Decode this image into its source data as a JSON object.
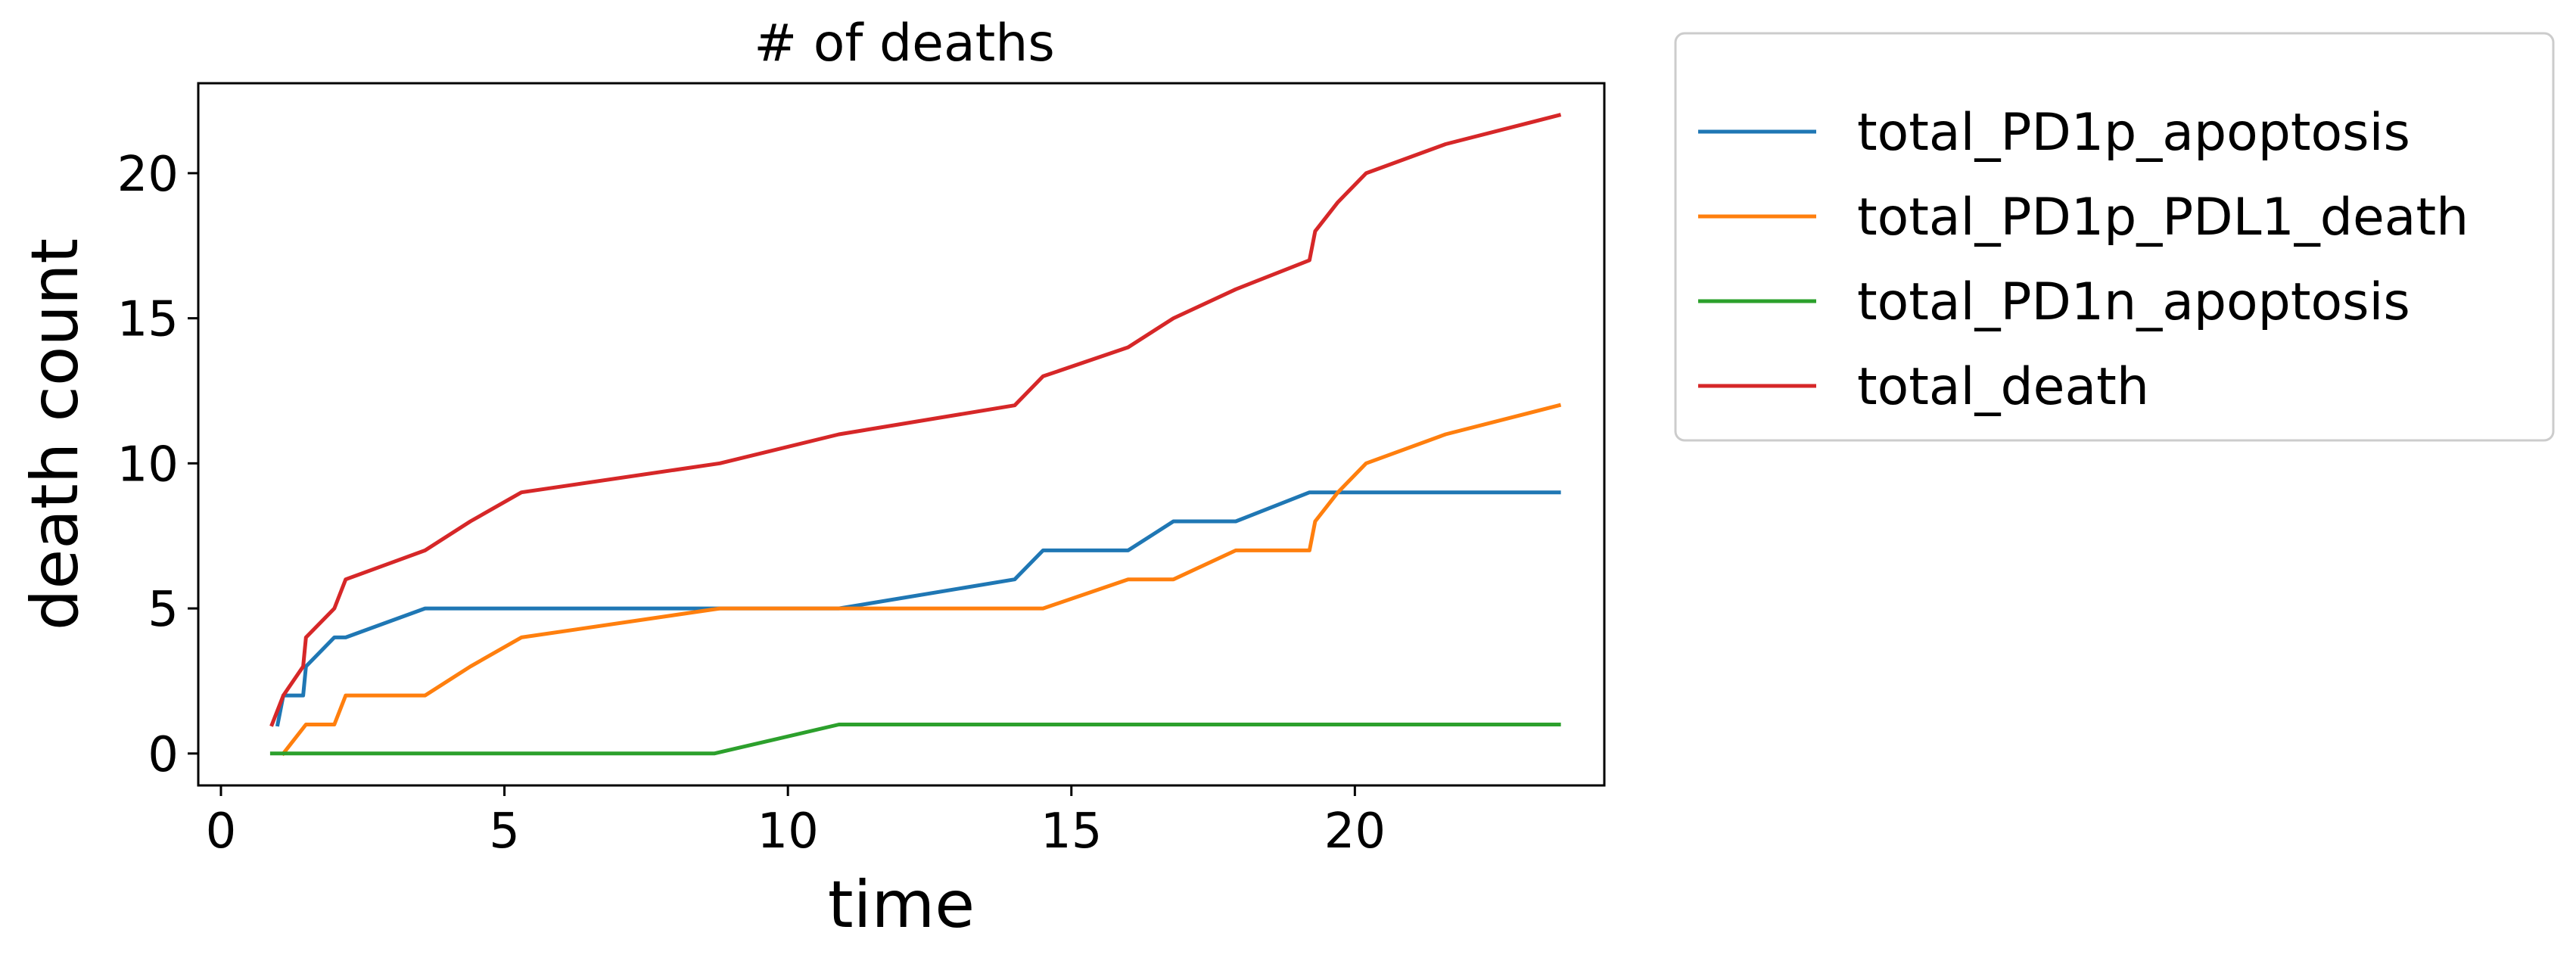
{
  "chart_data": {
    "type": "line",
    "title": "# of deaths",
    "xlabel": "time",
    "ylabel": "death count",
    "xlim": [
      -0.4,
      24.4
    ],
    "ylim": [
      -1.1,
      23.1
    ],
    "xticks": [
      0,
      5,
      10,
      15,
      20
    ],
    "yticks": [
      0,
      5,
      10,
      15,
      20
    ],
    "grid": false,
    "legend_position": "outside-top-right",
    "series": [
      {
        "name": "total_PD1p_apoptosis",
        "color": "#1f77b4",
        "points": [
          [
            1.0,
            1
          ],
          [
            1.1,
            2
          ],
          [
            1.45,
            2
          ],
          [
            1.5,
            3
          ],
          [
            2.0,
            4
          ],
          [
            2.2,
            4
          ],
          [
            3.6,
            5
          ],
          [
            10.9,
            5
          ],
          [
            14.0,
            6
          ],
          [
            14.5,
            7
          ],
          [
            16.0,
            7
          ],
          [
            16.8,
            8
          ],
          [
            17.9,
            8
          ],
          [
            19.2,
            9
          ],
          [
            23.6,
            9
          ]
        ]
      },
      {
        "name": "total_PD1p_PDL1_death",
        "color": "#ff7f0e",
        "points": [
          [
            1.1,
            0
          ],
          [
            1.5,
            1
          ],
          [
            2.0,
            1
          ],
          [
            2.2,
            2
          ],
          [
            3.6,
            2
          ],
          [
            4.4,
            3
          ],
          [
            5.3,
            4
          ],
          [
            8.8,
            5
          ],
          [
            14.5,
            5
          ],
          [
            16.0,
            6
          ],
          [
            16.8,
            6
          ],
          [
            17.9,
            7
          ],
          [
            19.2,
            7
          ],
          [
            19.3,
            8
          ],
          [
            19.7,
            9
          ],
          [
            20.2,
            10
          ],
          [
            21.6,
            11
          ],
          [
            23.6,
            12
          ]
        ]
      },
      {
        "name": "total_PD1n_apoptosis",
        "color": "#2ca02c",
        "points": [
          [
            0.9,
            0
          ],
          [
            8.7,
            0
          ],
          [
            10.9,
            1
          ],
          [
            23.6,
            1
          ]
        ]
      },
      {
        "name": "total_death",
        "color": "#d62728",
        "points": [
          [
            0.9,
            1
          ],
          [
            1.1,
            2
          ],
          [
            1.45,
            3
          ],
          [
            1.5,
            4
          ],
          [
            2.0,
            5
          ],
          [
            2.2,
            6
          ],
          [
            3.6,
            7
          ],
          [
            4.4,
            8
          ],
          [
            5.3,
            9
          ],
          [
            8.8,
            10
          ],
          [
            10.9,
            11
          ],
          [
            14.0,
            12
          ],
          [
            14.5,
            13
          ],
          [
            16.0,
            14
          ],
          [
            16.8,
            15
          ],
          [
            17.9,
            16
          ],
          [
            19.2,
            17
          ],
          [
            19.3,
            18
          ],
          [
            19.7,
            19
          ],
          [
            20.2,
            20
          ],
          [
            21.6,
            21
          ],
          [
            23.6,
            22
          ]
        ]
      }
    ]
  }
}
